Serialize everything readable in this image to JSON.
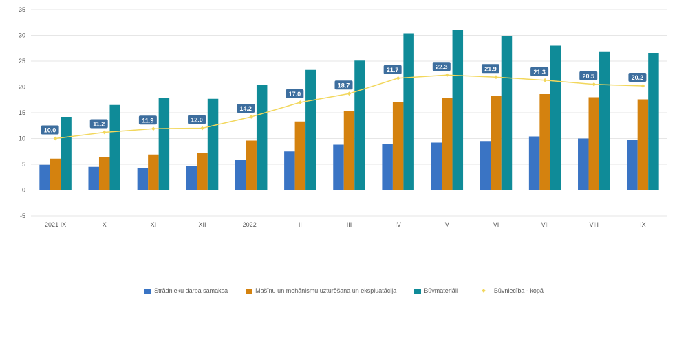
{
  "chart_data": {
    "type": "bar",
    "categories": [
      "2021 IX",
      "X",
      "XI",
      "XII",
      "2022 I",
      "II",
      "III",
      "IV",
      "V",
      "VI",
      "VII",
      "VIII",
      "IX"
    ],
    "series": [
      {
        "name": "Strādnieku darba samaksa",
        "type": "bar",
        "color": "#3a74c4",
        "values": [
          4.9,
          4.5,
          4.2,
          4.6,
          5.8,
          7.5,
          8.8,
          9.0,
          9.2,
          9.5,
          10.4,
          10.0,
          9.8
        ]
      },
      {
        "name": "Mašīnu un mehānismu uzturēšana un ekspluatācija",
        "type": "bar",
        "color": "#d4820f",
        "values": [
          6.1,
          6.4,
          6.9,
          7.2,
          9.6,
          13.3,
          15.3,
          17.1,
          17.8,
          18.3,
          18.6,
          18.0,
          17.6
        ]
      },
      {
        "name": "Būvmateriāli",
        "type": "bar",
        "color": "#0f8b98",
        "values": [
          14.2,
          16.5,
          17.9,
          17.7,
          20.4,
          23.3,
          25.1,
          30.4,
          31.1,
          29.8,
          28.0,
          26.9,
          26.6
        ]
      },
      {
        "name": "Būvniecība - kopā",
        "type": "line",
        "color": "#f2d75c",
        "values": [
          10.0,
          11.2,
          11.9,
          12.0,
          14.2,
          17.0,
          18.7,
          21.7,
          22.3,
          21.9,
          21.3,
          20.5,
          20.2
        ],
        "labels": [
          "10.0",
          "11.2",
          "11.9",
          "12.0",
          "14.2",
          "17.0",
          "18.7",
          "21.7",
          "22.3",
          "21.9",
          "21.3",
          "20.5",
          "20.2"
        ]
      }
    ],
    "y_ticks": [
      "-5",
      "0",
      "5",
      "10",
      "15",
      "20",
      "25",
      "30",
      "35"
    ],
    "ylim": [
      -5,
      35
    ],
    "grid": true,
    "legend_position": "bottom",
    "data_label_color": "#3d6e9e"
  }
}
